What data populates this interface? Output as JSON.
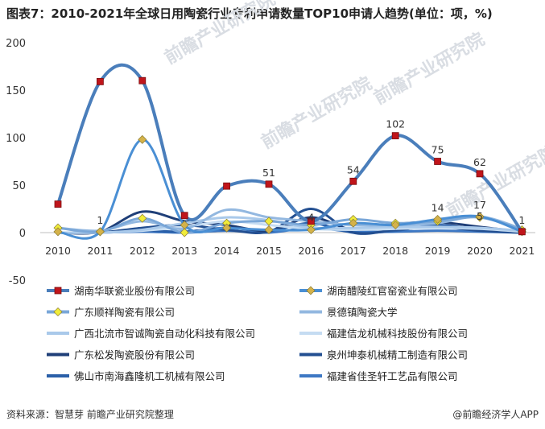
{
  "title": "图表7：2010-2021年全球日用陶瓷行业专利申请数量TOP10申请人趋势(单位：项，%)",
  "footer": {
    "source": "资料来源：智慧芽 前瞻产业研究院整理",
    "brand": "@前瞻经济学人APP"
  },
  "watermark": "前瞻产业研究院",
  "chart_data": {
    "type": "line",
    "x": [
      "2010",
      "2011",
      "2012",
      "2013",
      "2014",
      "2015",
      "2016",
      "2017",
      "2018",
      "2019",
      "2020",
      "2021"
    ],
    "yticks": [
      "200",
      "150",
      "100",
      "50",
      "0",
      "-50"
    ],
    "ylim": [
      -50,
      200
    ],
    "legend_position": "bottom",
    "series": [
      {
        "name": "湖南华联瓷业股份有限公司",
        "color": "#4a7ebb",
        "marker": "square-red",
        "values": [
          30,
          159,
          160,
          18,
          49,
          51,
          12,
          54,
          102,
          75,
          62,
          1
        ]
      },
      {
        "name": "湖南醴陵红官窑瓷业有限公司",
        "color": "#4a8fd4",
        "marker": "diamond-olive",
        "values": [
          1,
          1,
          98,
          8,
          5,
          3,
          3,
          10,
          8,
          14,
          17,
          1
        ]
      },
      {
        "name": "广东顺祥陶瓷有限公司",
        "color": "#7aa7d8",
        "marker": "diamond-yellow",
        "values": [
          5,
          1,
          15,
          0,
          10,
          12,
          8,
          14,
          10,
          12,
          16,
          3
        ]
      },
      {
        "name": "景德镇陶瓷大学",
        "color": "#93b8e0",
        "marker": "none",
        "values": [
          5,
          2,
          12,
          4,
          24,
          16,
          12,
          8,
          8,
          10,
          17,
          4
        ]
      },
      {
        "name": "广西北流市智诚陶瓷自动化科技有限公司",
        "color": "#a9c9ea",
        "marker": "none",
        "values": [
          0,
          0,
          3,
          10,
          16,
          13,
          5,
          5,
          6,
          6,
          5,
          2
        ]
      },
      {
        "name": "福建佶龙机械科技股份有限公司",
        "color": "#c5dcf2",
        "marker": "none",
        "values": [
          0,
          0,
          2,
          6,
          12,
          8,
          4,
          3,
          4,
          5,
          4,
          1
        ]
      },
      {
        "name": "广东松发陶瓷股份有限公司",
        "color": "#1f3f78",
        "marker": "none",
        "values": [
          0,
          1,
          22,
          12,
          8,
          2,
          16,
          3,
          9,
          11,
          6,
          1
        ]
      },
      {
        "name": "泉州坤泰机械精工制造有限公司",
        "color": "#234f91",
        "marker": "none",
        "values": [
          0,
          0,
          5,
          8,
          3,
          1,
          25,
          0,
          3,
          6,
          2,
          0
        ]
      },
      {
        "name": "佛山市南海鑫隆机工机械有限公司",
        "color": "#2a5fa8",
        "marker": "none",
        "values": [
          0,
          0,
          2,
          1,
          5,
          2,
          10,
          0,
          2,
          8,
          3,
          0
        ]
      },
      {
        "name": "福建省佳圣轩工艺品有限公司",
        "color": "#3d78c4",
        "marker": "none",
        "values": [
          0,
          0,
          1,
          0,
          2,
          0,
          5,
          1,
          1,
          2,
          1,
          0
        ]
      }
    ],
    "data_labels": [
      {
        "x": "2011",
        "text": "1",
        "value": 1
      },
      {
        "x": "2015",
        "text": "51",
        "value": 51
      },
      {
        "x": "2016",
        "text": "4",
        "value": 4
      },
      {
        "x": "2017",
        "text": "54",
        "value": 54
      },
      {
        "x": "2018",
        "text": "102",
        "value": 102
      },
      {
        "x": "2019",
        "text": "75",
        "value": 75
      },
      {
        "x": "2019",
        "text": "14",
        "value": 14
      },
      {
        "x": "2020",
        "text": "62",
        "value": 62
      },
      {
        "x": "2020",
        "text": "17",
        "value": 17
      },
      {
        "x": "2020",
        "text": "5",
        "value": 5
      },
      {
        "x": "2021",
        "text": "1",
        "value": 1
      }
    ]
  }
}
